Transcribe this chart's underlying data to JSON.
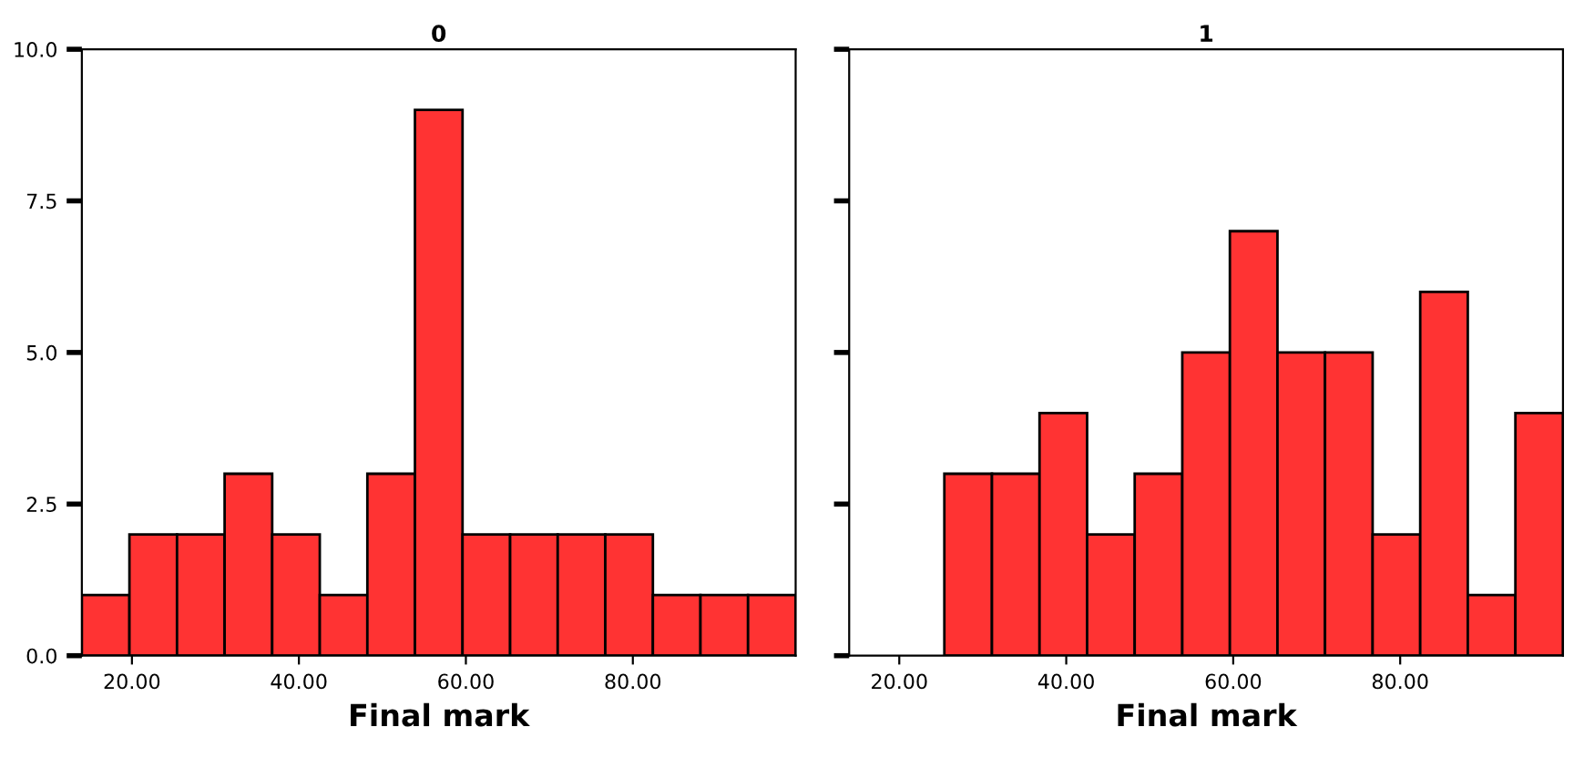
{
  "chart_data": [
    {
      "type": "histogram",
      "title": "0",
      "xlabel": "Final mark",
      "color": "#ff3333",
      "bins": [
        14.0,
        19.7,
        25.4,
        31.1,
        36.8,
        42.5,
        48.2,
        53.9,
        59.6,
        65.3,
        71.0,
        76.7,
        82.4,
        88.1,
        93.8,
        99.5
      ],
      "values": [
        1,
        2,
        2,
        3,
        2,
        1,
        3,
        9,
        2,
        2,
        2,
        2,
        1,
        1,
        1
      ],
      "xlim": [
        14.0,
        99.5
      ],
      "ylim": [
        0,
        10
      ],
      "xticks": [
        {
          "value": 20,
          "label": "20.00"
        },
        {
          "value": 40,
          "label": "40.00"
        },
        {
          "value": 60,
          "label": "60.00"
        },
        {
          "value": 80,
          "label": "80.00"
        }
      ],
      "yticks": [
        {
          "value": 0,
          "label": "0.0"
        },
        {
          "value": 2.5,
          "label": "2.5"
        },
        {
          "value": 5,
          "label": "5.0"
        },
        {
          "value": 7.5,
          "label": "7.5"
        },
        {
          "value": 10,
          "label": "10.0"
        }
      ]
    },
    {
      "type": "histogram",
      "title": "1",
      "xlabel": "Final mark",
      "color": "#ff3333",
      "bins": [
        14.0,
        19.7,
        25.4,
        31.1,
        36.8,
        42.5,
        48.2,
        53.9,
        59.6,
        65.3,
        71.0,
        76.7,
        82.4,
        88.1,
        93.8,
        99.5
      ],
      "values": [
        0,
        0,
        3,
        3,
        4,
        2,
        3,
        5,
        7,
        5,
        5,
        2,
        6,
        1,
        4
      ],
      "xlim": [
        14.0,
        99.5
      ],
      "ylim": [
        0,
        10
      ],
      "xticks": [
        {
          "value": 20,
          "label": "20.00"
        },
        {
          "value": 40,
          "label": "40.00"
        },
        {
          "value": 60,
          "label": "60.00"
        },
        {
          "value": 80,
          "label": "80.00"
        }
      ],
      "tick_labels": "x"
    }
  ]
}
